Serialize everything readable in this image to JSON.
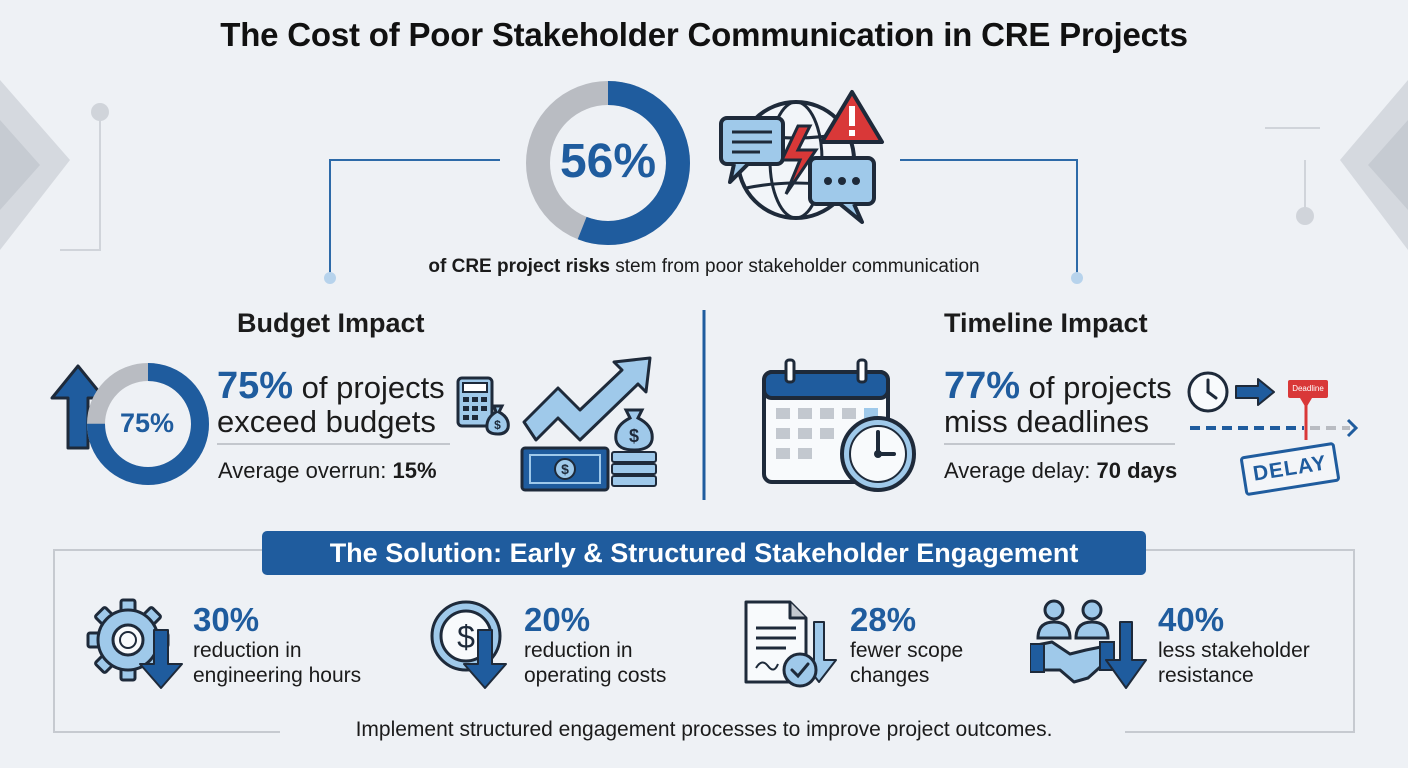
{
  "title": "The Cost of Poor Stakeholder Communication in CRE Projects",
  "hero": {
    "percent": "56%",
    "fraction": 0.56,
    "caption_bold": "of CRE project risks",
    "caption_rest": " stem from poor stakeholder communication"
  },
  "budget": {
    "title": "Budget Impact",
    "ring_label": "75%",
    "fraction": 0.75,
    "stat_value": "75%",
    "stat_line1": " of projects",
    "stat_line2": "exceed budgets",
    "sub_label": "Average overrun: ",
    "sub_value": "15%"
  },
  "timeline": {
    "title": "Timeline Impact",
    "stat_value": "77%",
    "stat_line1": " of projects",
    "stat_line2": "miss deadlines",
    "sub_label": "Average delay: ",
    "sub_value": "70 days",
    "deadline_flag": "Deadline",
    "delay_stamp": "DELAY"
  },
  "solution": {
    "banner": "The Solution: Early & Structured Stakeholder Engagement",
    "metrics": [
      {
        "percent": "30%",
        "line1": "reduction in",
        "line2": "engineering hours",
        "icon": "gear-icon"
      },
      {
        "percent": "20%",
        "line1": "reduction in",
        "line2": "operating costs",
        "icon": "dollar-coin-icon"
      },
      {
        "percent": "28%",
        "line1": "fewer scope",
        "line2": "changes",
        "icon": "document-check-icon"
      },
      {
        "percent": "40%",
        "line1": "less stakeholder",
        "line2": "resistance",
        "icon": "handshake-icon"
      }
    ],
    "footer": "Implement structured engagement processes to improve project outcomes."
  },
  "colors": {
    "accent": "#1f5c9e",
    "light_blue": "#9fc9ea",
    "gray": "#b9bcc2",
    "alert_red": "#d93838",
    "background": "#eef1f5"
  }
}
